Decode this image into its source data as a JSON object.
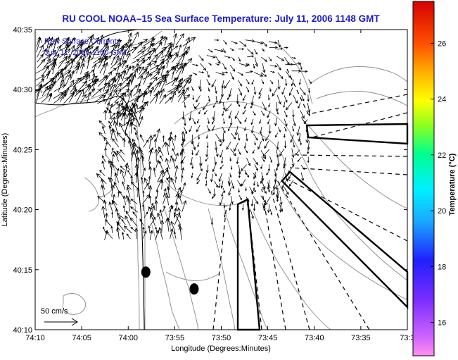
{
  "chart_data": {
    "type": "vector-field",
    "title": "RU COOL  NOAA–15  Sea Surface Temperature:  July 11, 2006 1148 GMT",
    "xlabel": "Longitude (Degrees:Minutes)",
    "ylabel": "Latitude (Degrees:Minutes)",
    "xlim": [
      -74.1667,
      -73.55
    ],
    "ylim": [
      40.1667,
      40.5833
    ],
    "x_tick_labels": [
      "74:10",
      "74:05",
      "74:00",
      "73:55",
      "73:50",
      "73:45",
      "73:40",
      "73:35",
      "73:3"
    ],
    "y_tick_labels": [
      "40:35",
      "40:30",
      "40:25",
      "40:20",
      "40:15",
      "40:10"
    ],
    "annotation_lines": [
      "Raw Surface Currents",
      "July 11, 2006 1100 GMT"
    ],
    "scale_label": "50 cm/s",
    "colorbar": {
      "label": "Temperature (°C)",
      "range": [
        14.8,
        27.5
      ],
      "tick_labels": [
        "26",
        "24",
        "22",
        "20",
        "18",
        "16"
      ]
    },
    "markers": [
      {
        "lon": -73.9833,
        "lat": 40.2467
      },
      {
        "lon": -73.9033,
        "lat": 40.2233
      }
    ],
    "colors": {
      "title": "#1c1cc8",
      "annotation": "#1c1cc8",
      "contour": "#8a8a8a"
    }
  }
}
